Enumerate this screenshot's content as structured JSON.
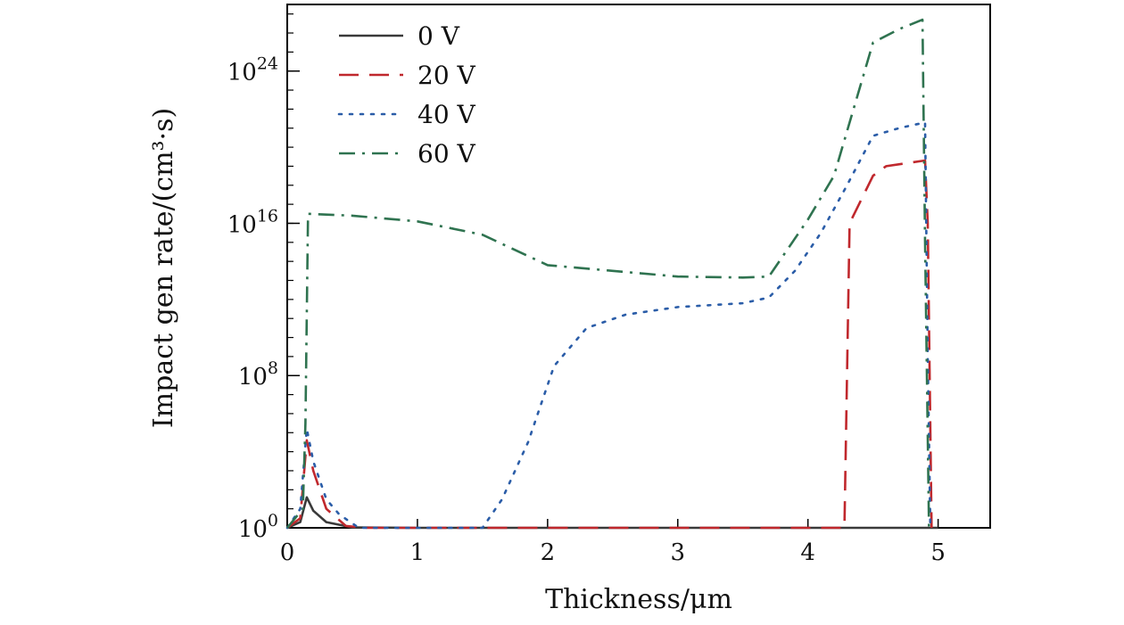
{
  "chart_data": {
    "type": "line",
    "title": "",
    "xlabel": "Thickness/μm",
    "ylabel": "Impact gen rate/(cm³·s)",
    "xlim": [
      0,
      5.4
    ],
    "ylim_exponent": [
      0,
      27.5
    ],
    "y_scale": "log10",
    "x_ticks": [
      0,
      1,
      2,
      3,
      4,
      5
    ],
    "y_ticks": [
      {
        "base": "10",
        "exp": "0",
        "value_exp": 0
      },
      {
        "base": "10",
        "exp": "8",
        "value_exp": 8
      },
      {
        "base": "10",
        "exp": "16",
        "value_exp": 16
      },
      {
        "base": "10",
        "exp": "24",
        "value_exp": 24
      }
    ],
    "grid": false,
    "legend_position": "top-left",
    "series": [
      {
        "name": "0 V",
        "color": "#3a3a3a",
        "dash": "solid",
        "points_log10": [
          [
            0,
            0
          ],
          [
            0.1,
            0.3
          ],
          [
            0.15,
            1.6
          ],
          [
            0.2,
            0.9
          ],
          [
            0.3,
            0.3
          ],
          [
            0.5,
            0.02
          ],
          [
            1,
            0
          ],
          [
            2,
            0
          ],
          [
            3,
            0
          ],
          [
            4,
            0
          ],
          [
            4.9,
            0
          ],
          [
            5.0,
            0
          ]
        ]
      },
      {
        "name": "20 V",
        "color": "#c0282d",
        "dash": "long-dash",
        "points_log10": [
          [
            0,
            0
          ],
          [
            0.1,
            0.5
          ],
          [
            0.15,
            4.6
          ],
          [
            0.2,
            3.0
          ],
          [
            0.3,
            1.0
          ],
          [
            0.45,
            0.1
          ],
          [
            0.6,
            0
          ],
          [
            1,
            0
          ],
          [
            2,
            0
          ],
          [
            3,
            0
          ],
          [
            4,
            0
          ],
          [
            4.28,
            0
          ],
          [
            4.32,
            16
          ],
          [
            4.5,
            18.5
          ],
          [
            4.6,
            19
          ],
          [
            4.9,
            19.3
          ],
          [
            4.92,
            16
          ],
          [
            4.95,
            0
          ]
        ]
      },
      {
        "name": "40 V",
        "color": "#2b5da8",
        "dash": "dotted",
        "points_log10": [
          [
            0,
            0
          ],
          [
            0.1,
            1.0
          ],
          [
            0.15,
            5.2
          ],
          [
            0.2,
            3.5
          ],
          [
            0.3,
            1.5
          ],
          [
            0.4,
            0.7
          ],
          [
            0.55,
            0
          ],
          [
            1,
            0
          ],
          [
            1.5,
            0
          ],
          [
            1.65,
            1.5
          ],
          [
            1.85,
            4.5
          ],
          [
            2.05,
            8.5
          ],
          [
            2.3,
            10.5
          ],
          [
            2.6,
            11.2
          ],
          [
            3,
            11.6
          ],
          [
            3.5,
            11.8
          ],
          [
            3.7,
            12.1
          ],
          [
            3.9,
            13.5
          ],
          [
            4.1,
            15.5
          ],
          [
            4.3,
            18
          ],
          [
            4.5,
            20.6
          ],
          [
            4.7,
            21
          ],
          [
            4.9,
            21.3
          ],
          [
            4.92,
            9
          ],
          [
            4.94,
            0
          ]
        ]
      },
      {
        "name": "60 V",
        "color": "#2f7350",
        "dash": "dash-dot",
        "points_log10": [
          [
            0,
            0
          ],
          [
            0.12,
            1.0
          ],
          [
            0.14,
            5.5
          ],
          [
            0.16,
            16.5
          ],
          [
            0.5,
            16.4
          ],
          [
            1,
            16.1
          ],
          [
            1.5,
            15.4
          ],
          [
            2,
            13.8
          ],
          [
            2.5,
            13.5
          ],
          [
            3,
            13.2
          ],
          [
            3.5,
            13.15
          ],
          [
            3.7,
            13.2
          ],
          [
            4.0,
            16.2
          ],
          [
            4.2,
            18.5
          ],
          [
            4.35,
            22
          ],
          [
            4.5,
            25.5
          ],
          [
            4.7,
            26.2
          ],
          [
            4.88,
            26.7
          ],
          [
            4.9,
            15
          ],
          [
            4.93,
            0
          ]
        ]
      }
    ]
  }
}
